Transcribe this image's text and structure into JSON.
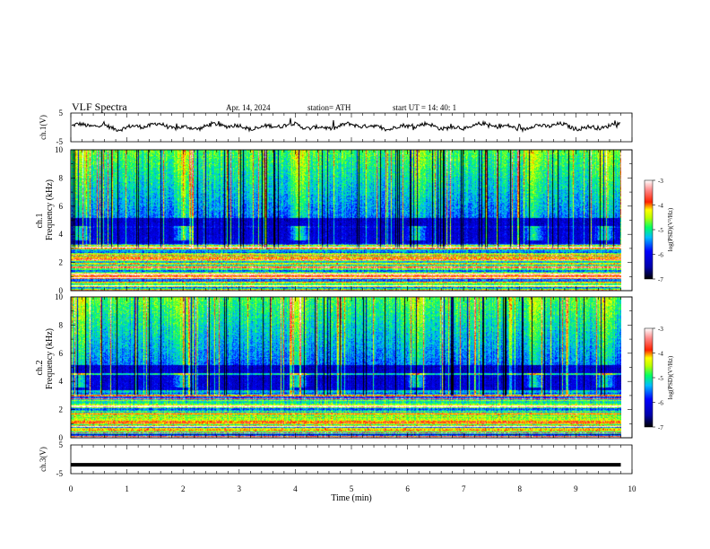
{
  "header": {
    "title": "VLF  Spectra",
    "date": "Apr. 14, 2024",
    "station": "station= ATH",
    "start": "start  UT  =    14: 40: 1"
  },
  "chart_data": [
    {
      "id": "ch1-voltage",
      "type": "line",
      "ylabel": "ch.1(V)",
      "xlim": [
        0,
        10
      ],
      "ylim": [
        -5,
        5
      ],
      "yticks": [
        "5",
        "-5"
      ],
      "trace": "noisy waveform near 0 V",
      "level": 0.3
    },
    {
      "id": "ch1-spectrogram",
      "type": "heatmap",
      "ylabel": "ch.1\nFrequency (kHz)",
      "ylabel_lines": [
        "ch.1",
        "Frequency  (kHz)"
      ],
      "xlim": [
        0,
        10
      ],
      "ylim": [
        0,
        10
      ],
      "yticks": [
        "0",
        "2",
        "4",
        "6",
        "8",
        "10"
      ],
      "data_end_min": 9.8,
      "bursts_min": [
        0.15,
        2.0,
        4.05,
        6.15,
        8.25,
        9.5
      ],
      "colorbar": {
        "label": "log(PSD)(V²/Hz)",
        "ticks": [
          "-3",
          "-4",
          "-5",
          "-6",
          "-7"
        ],
        "range": [
          -7,
          -3
        ]
      }
    },
    {
      "id": "ch2-spectrogram",
      "type": "heatmap",
      "ylabel": "ch.2\nFrequency (kHz)",
      "ylabel_lines": [
        "ch.2",
        "Frequency  (kHz)"
      ],
      "xlim": [
        0,
        10
      ],
      "ylim": [
        0,
        10
      ],
      "yticks": [
        "0",
        "2",
        "4",
        "6",
        "8",
        "10"
      ],
      "data_end_min": 9.8,
      "bursts_min": [
        0.15,
        2.0,
        4.05,
        6.15,
        8.25,
        9.5
      ],
      "colorbar": {
        "label": "log(PSD)(V²/Hz)",
        "ticks": [
          "-3",
          "-4",
          "-5",
          "-6",
          "-7"
        ],
        "range": [
          -7,
          -3
        ]
      }
    },
    {
      "id": "ch3-voltage",
      "type": "line",
      "ylabel": "ch.3(V)",
      "xlim": [
        0,
        10
      ],
      "ylim": [
        -5,
        5
      ],
      "yticks": [
        "5",
        "-5"
      ],
      "trace": "flat thick line",
      "level": -1.9
    }
  ],
  "xaxis": {
    "label": "Time  (min)",
    "ticks": [
      "0",
      "1",
      "2",
      "3",
      "4",
      "5",
      "6",
      "7",
      "8",
      "9",
      "10"
    ]
  },
  "colors": {
    "background": "#ffffff",
    "axis": "#000000",
    "colormap": [
      "#000000",
      "#0000ff",
      "#00ccff",
      "#00ff66",
      "#ffff00",
      "#ff0000",
      "#ffffff"
    ]
  }
}
